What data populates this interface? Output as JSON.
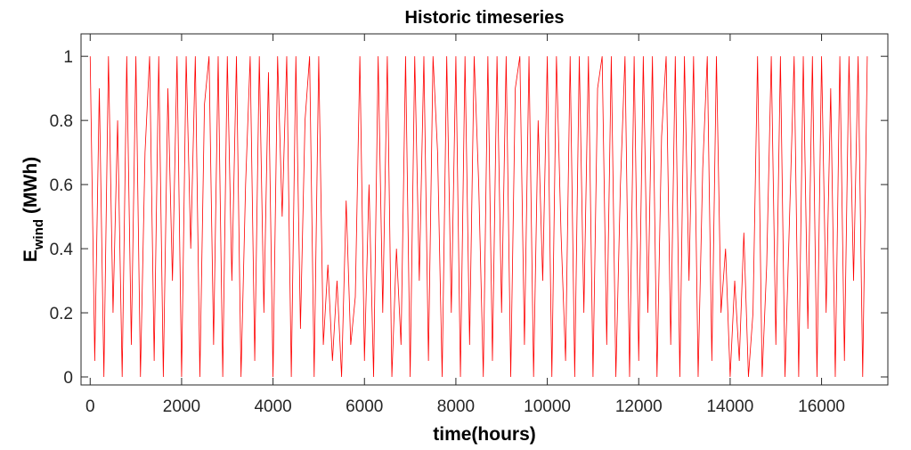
{
  "chart_data": {
    "type": "line",
    "title": "Historic timeseries",
    "xlabel": "time(hours)",
    "ylabel": {
      "main": "E",
      "sub": "wind",
      "unit": "(MWh)"
    },
    "x": [
      0,
      100,
      200,
      300,
      400,
      500,
      600,
      700,
      800,
      900,
      1000,
      1100,
      1200,
      1300,
      1400,
      1500,
      1600,
      1700,
      1800,
      1900,
      2000,
      2100,
      2200,
      2300,
      2400,
      2500,
      2600,
      2700,
      2800,
      2900,
      3000,
      3100,
      3200,
      3300,
      3400,
      3500,
      3600,
      3700,
      3800,
      3900,
      4000,
      4100,
      4200,
      4300,
      4400,
      4500,
      4600,
      4700,
      4800,
      4900,
      5000,
      5100,
      5200,
      5300,
      5400,
      5500,
      5600,
      5700,
      5800,
      5900,
      6000,
      6100,
      6200,
      6300,
      6400,
      6500,
      6600,
      6700,
      6800,
      6900,
      7000,
      7100,
      7200,
      7300,
      7400,
      7500,
      7600,
      7700,
      7800,
      7900,
      8000,
      8100,
      8200,
      8300,
      8400,
      8500,
      8600,
      8700,
      8800,
      8900,
      9000,
      9100,
      9200,
      9300,
      9400,
      9500,
      9600,
      9700,
      9800,
      9900,
      10000,
      10100,
      10200,
      10300,
      10400,
      10500,
      10600,
      10700,
      10800,
      10900,
      11000,
      11100,
      11200,
      11300,
      11400,
      11500,
      11600,
      11700,
      11800,
      11900,
      12000,
      12100,
      12200,
      12300,
      12400,
      12500,
      12600,
      12700,
      12800,
      12900,
      13000,
      13100,
      13200,
      13300,
      13400,
      13500,
      13600,
      13700,
      13800,
      13900,
      14000,
      14100,
      14200,
      14300,
      14400,
      14500,
      14600,
      14700,
      14800,
      14900,
      15000,
      15100,
      15200,
      15300,
      15400,
      15500,
      15600,
      15700,
      15800,
      15900,
      16000,
      16100,
      16200,
      16300,
      16400,
      16500,
      16600,
      16700,
      16800,
      16900,
      17000
    ],
    "series": [
      {
        "color": "#ff0000",
        "values": [
          1,
          0.05,
          0.9,
          0,
          1,
          0.2,
          0.8,
          0,
          1,
          0.1,
          1,
          0,
          0.7,
          1,
          0.05,
          1,
          0,
          0.9,
          0.3,
          1,
          0,
          1,
          0.4,
          1,
          0,
          0.85,
          1,
          0.1,
          1,
          0,
          1,
          0.3,
          1,
          0,
          0.6,
          1,
          0.05,
          1,
          0.2,
          0.95,
          0,
          1,
          0.5,
          1,
          0,
          1,
          0.15,
          0.8,
          1,
          0,
          1,
          0.1,
          0.35,
          0.05,
          0.3,
          0,
          0.55,
          0.1,
          0.25,
          1,
          0.05,
          0.6,
          0,
          1,
          0.2,
          1,
          0,
          0.4,
          0.1,
          1,
          0,
          1,
          0.3,
          1,
          0.05,
          1,
          0.7,
          0,
          1,
          0.2,
          1,
          0,
          1,
          0.1,
          1,
          0.6,
          0,
          1,
          0.05,
          1,
          0.2,
          1,
          0,
          0.9,
          1,
          0.1,
          1,
          0,
          0.8,
          0.3,
          1,
          0,
          1,
          0.45,
          0.05,
          1,
          0,
          1,
          0.2,
          1,
          0,
          0.9,
          1,
          0.1,
          1,
          0,
          0.6,
          1,
          0,
          1,
          0.05,
          1,
          0.2,
          1,
          0,
          0.75,
          1,
          0.1,
          1,
          0,
          1,
          0.3,
          1,
          0,
          0.65,
          1,
          0.05,
          1,
          0.2,
          0.4,
          0,
          0.3,
          0.05,
          0.45,
          0,
          0.2,
          1,
          0,
          0.35,
          1,
          0.1,
          1,
          0,
          0.5,
          1,
          0,
          1,
          0.15,
          1,
          0,
          1,
          0.2,
          0.9,
          0,
          1,
          0.05,
          1,
          0.3,
          1,
          0,
          1
        ]
      }
    ],
    "xlim": [
      -200,
      17450
    ],
    "ylim": [
      -0.025,
      1.07
    ],
    "xticks": [
      0,
      2000,
      4000,
      6000,
      8000,
      10000,
      12000,
      14000,
      16000
    ],
    "yticks": [
      0,
      0.2,
      0.4,
      0.6,
      0.8,
      1
    ]
  }
}
